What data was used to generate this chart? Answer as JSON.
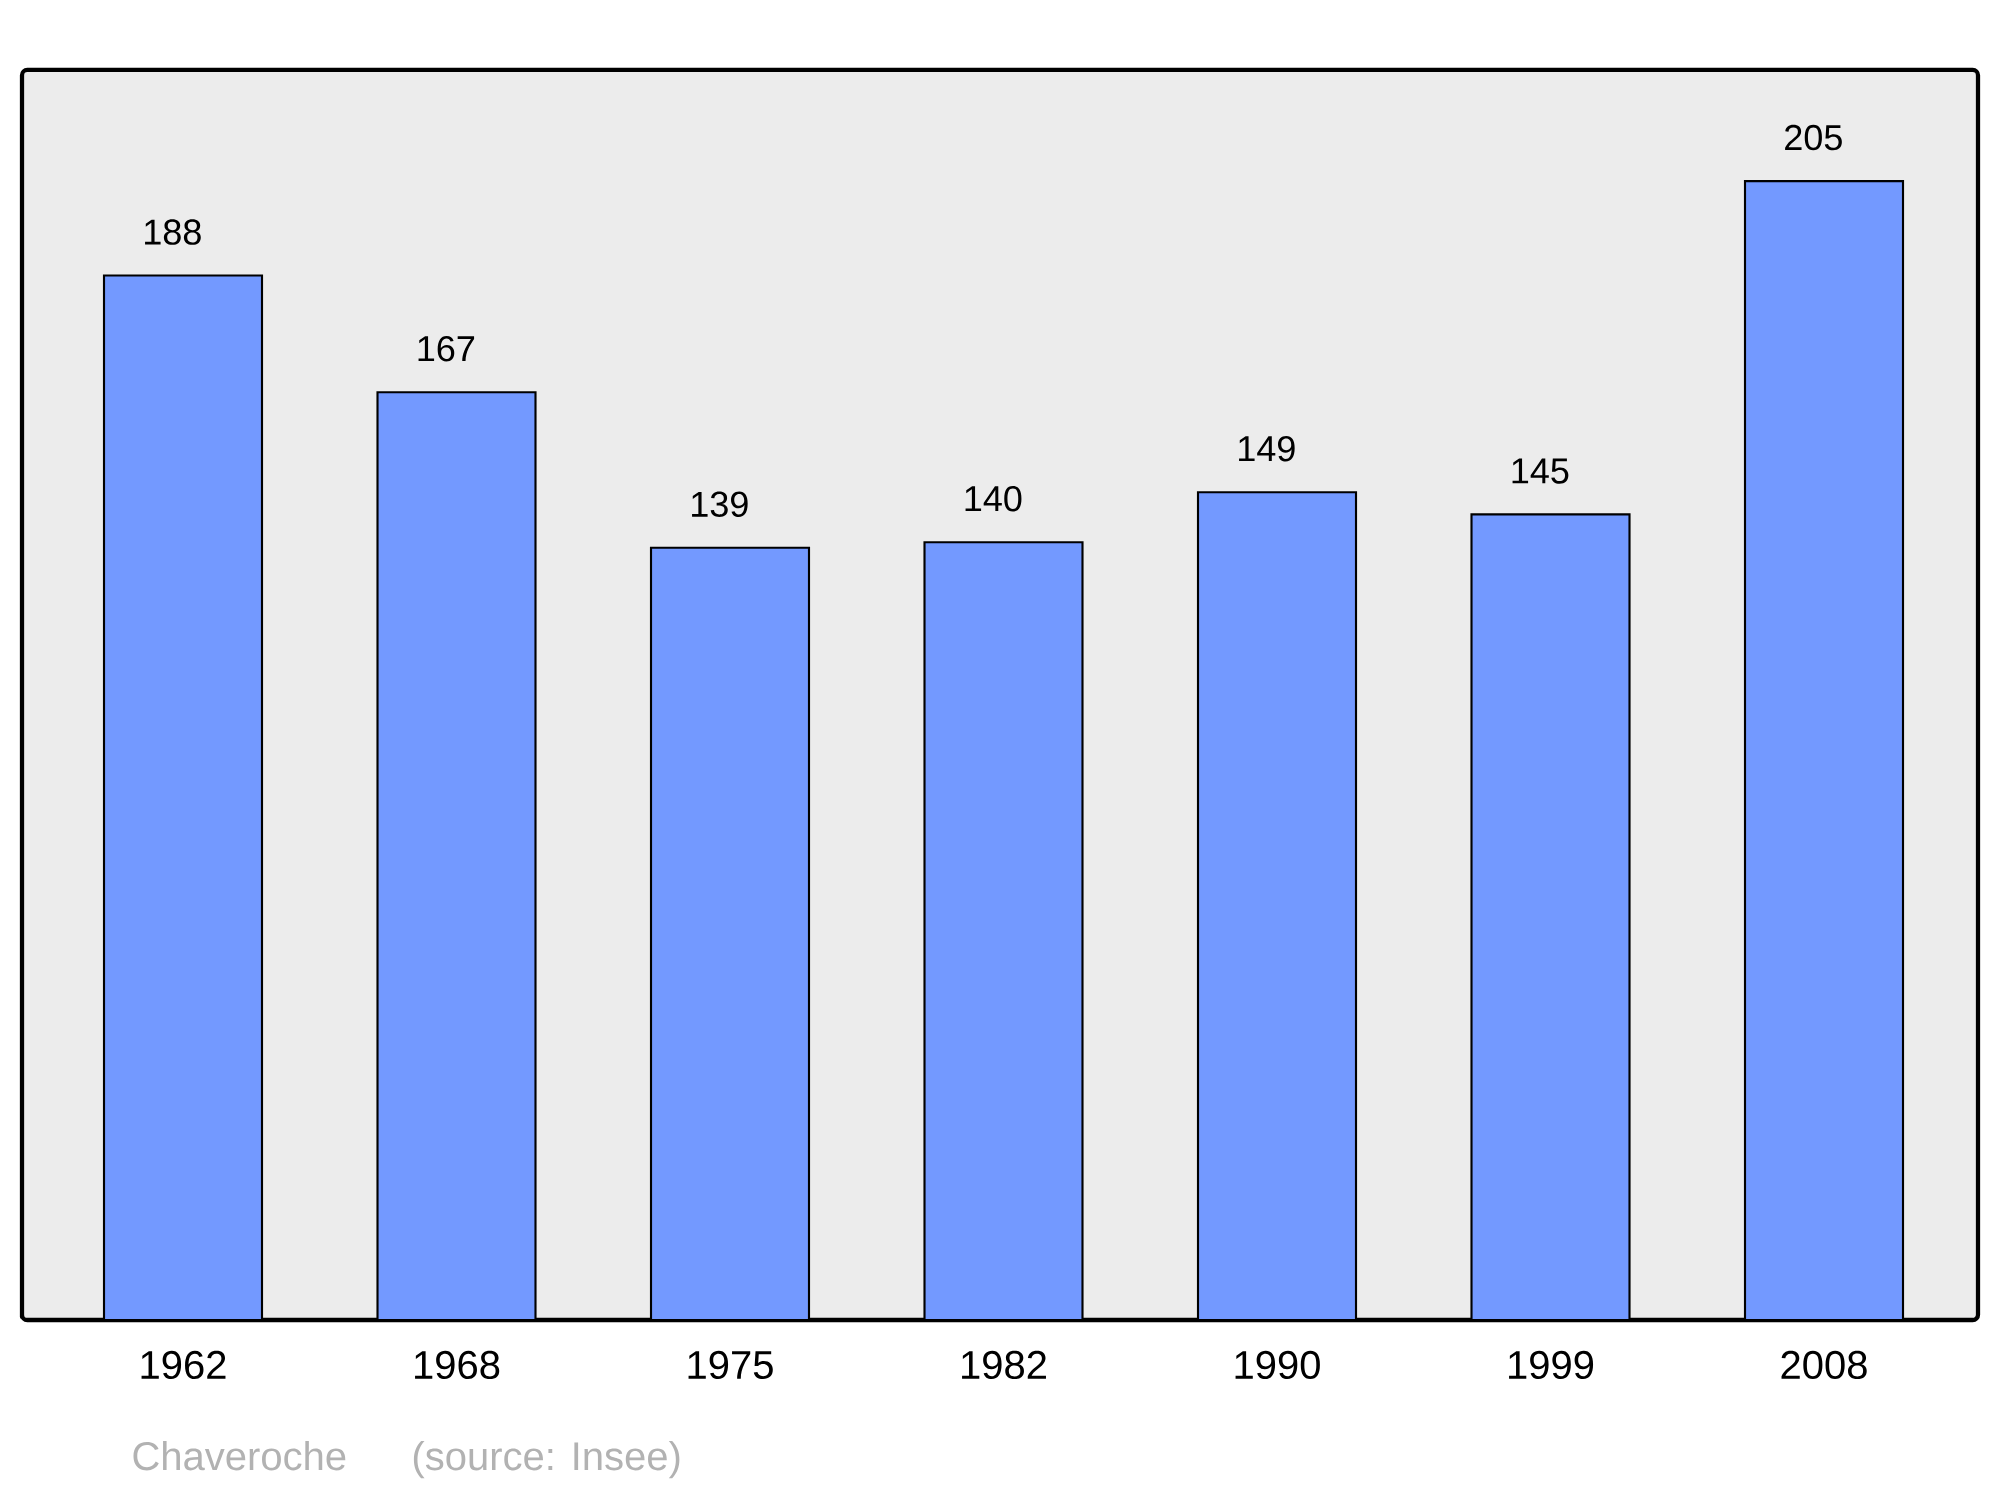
{
  "chart_data": {
    "type": "bar",
    "categories": [
      "1962",
      "1968",
      "1975",
      "1982",
      "1990",
      "1999",
      "2008"
    ],
    "values": [
      188,
      167,
      139,
      140,
      149,
      145,
      205
    ],
    "color": "#7399ff",
    "ylim": [
      0,
      225
    ],
    "data_labels": true,
    "annotations": [
      "Chaveroche",
      "(source: Insee)"
    ]
  }
}
